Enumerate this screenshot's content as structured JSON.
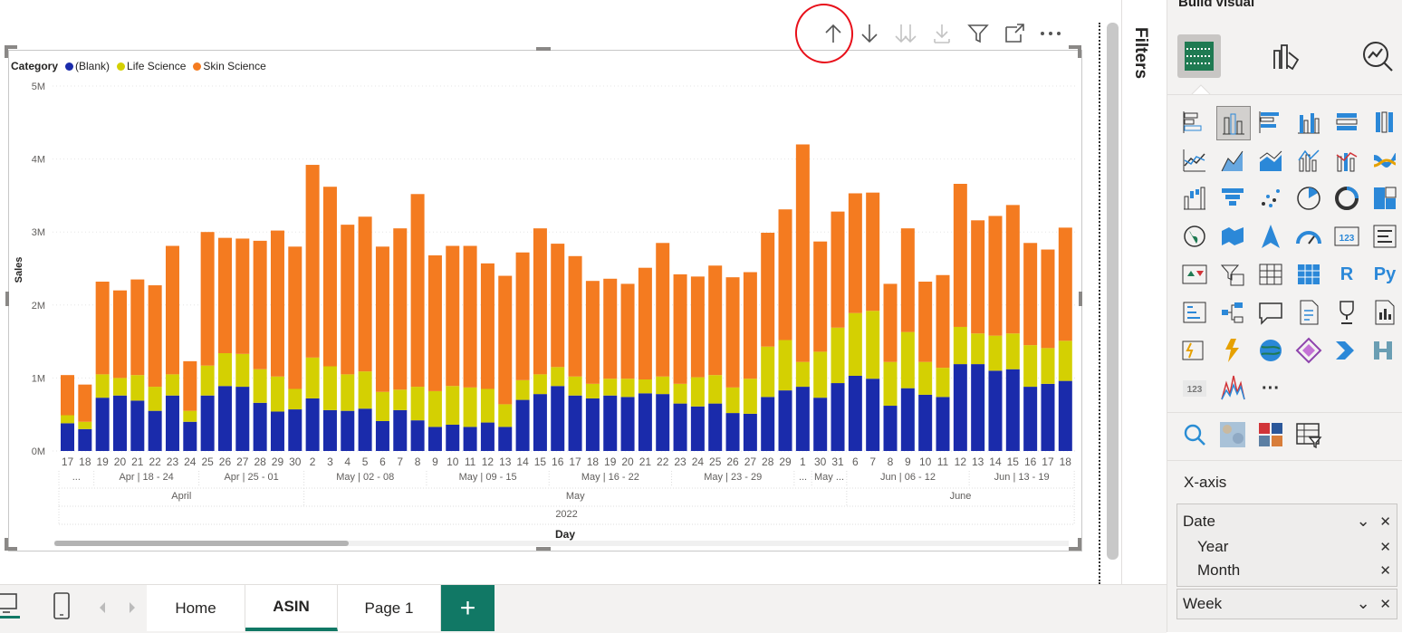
{
  "toolbar": {
    "icons": [
      "arrow-up-icon",
      "arrow-down-icon",
      "double-arrow-down-icon",
      "expand-hierarchy-icon",
      "filter-icon",
      "focus-mode-icon",
      "more-options-icon"
    ]
  },
  "legend": {
    "title": "Category",
    "items": [
      {
        "label": "(Blank)",
        "color": "#1a2bab"
      },
      {
        "label": "Life Science",
        "color": "#d4d002"
      },
      {
        "label": "Skin Science",
        "color": "#f47b20"
      }
    ]
  },
  "chart_data": {
    "type": "bar",
    "stacked": true,
    "ylabel": "Sales",
    "xlabel": "Day",
    "yticks": [
      "0M",
      "1M",
      "2M",
      "3M",
      "4M",
      "5M"
    ],
    "ylim": [
      0,
      5000000
    ],
    "grid": true,
    "legend_position": "top-left",
    "categories": [
      "17",
      "18",
      "19",
      "20",
      "21",
      "22",
      "23",
      "24",
      "25",
      "26",
      "27",
      "28",
      "29",
      "30",
      "2",
      "3",
      "4",
      "5",
      "6",
      "7",
      "8",
      "9",
      "10",
      "11",
      "12",
      "13",
      "14",
      "15",
      "16",
      "17",
      "18",
      "19",
      "20",
      "21",
      "22",
      "23",
      "24",
      "25",
      "26",
      "27",
      "28",
      "29",
      "1",
      "30",
      "31",
      "6",
      "7",
      "8",
      "9",
      "10",
      "11",
      "12",
      "13",
      "14",
      "15",
      "16",
      "17",
      "18"
    ],
    "series": [
      {
        "name": "(Blank)",
        "color": "#1a2bab",
        "values": [
          380000,
          300000,
          730000,
          760000,
          690000,
          550000,
          760000,
          400000,
          760000,
          890000,
          880000,
          660000,
          540000,
          570000,
          720000,
          560000,
          550000,
          580000,
          410000,
          560000,
          420000,
          330000,
          360000,
          330000,
          390000,
          330000,
          700000,
          780000,
          890000,
          760000,
          720000,
          760000,
          740000,
          790000,
          780000,
          650000,
          610000,
          650000,
          520000,
          510000,
          740000,
          830000,
          880000,
          730000,
          930000,
          1030000,
          990000,
          620000,
          860000,
          770000,
          740000,
          1190000,
          1190000,
          1100000,
          1120000,
          880000,
          920000,
          960000
        ]
      },
      {
        "name": "Life Science",
        "color": "#d4d002",
        "values": [
          110000,
          100000,
          320000,
          240000,
          350000,
          330000,
          290000,
          150000,
          410000,
          450000,
          450000,
          460000,
          480000,
          280000,
          560000,
          600000,
          500000,
          510000,
          400000,
          280000,
          460000,
          490000,
          530000,
          540000,
          460000,
          310000,
          270000,
          270000,
          260000,
          260000,
          200000,
          230000,
          250000,
          190000,
          240000,
          270000,
          400000,
          390000,
          350000,
          480000,
          690000,
          690000,
          340000,
          630000,
          760000,
          860000,
          930000,
          600000,
          770000,
          450000,
          400000,
          510000,
          420000,
          480000,
          490000,
          570000,
          490000,
          550000
        ]
      },
      {
        "name": "Skin Science",
        "color": "#f47b20",
        "values": [
          550000,
          510000,
          1270000,
          1200000,
          1310000,
          1390000,
          1760000,
          680000,
          1830000,
          1580000,
          1580000,
          1760000,
          2000000,
          1950000,
          2640000,
          2460000,
          2050000,
          2120000,
          1990000,
          2210000,
          2640000,
          1860000,
          1920000,
          1940000,
          1720000,
          1760000,
          1750000,
          2000000,
          1690000,
          1650000,
          1410000,
          1370000,
          1300000,
          1530000,
          1830000,
          1500000,
          1380000,
          1500000,
          1510000,
          1460000,
          1560000,
          1790000,
          2980000,
          1510000,
          1590000,
          1640000,
          1620000,
          1070000,
          1420000,
          1100000,
          1270000,
          1960000,
          1550000,
          1640000,
          1760000,
          1400000,
          1350000,
          1550000
        ]
      }
    ],
    "hierarchy": {
      "week_labels": [
        "...",
        "Apr | 18 - 24",
        "Apr | 25 - 01",
        "May | 02 - 08",
        "May | 09 - 15",
        "May | 16 - 22",
        "May | 23 - 29",
        "...",
        "May ...",
        "Jun | 06 - 12",
        "Jun | 13 - 19"
      ],
      "month_labels": [
        "April",
        "May",
        "June"
      ],
      "year_label": "2022"
    }
  },
  "filters_pane": {
    "label": "Filters"
  },
  "viz_pane": {
    "title": "Build visual",
    "top_icons": [
      "build-visual-icon",
      "format-visual-icon",
      "analytics-icon"
    ],
    "visual_icons": [
      "stacked-bar-icon",
      "stacked-column-icon",
      "clustered-bar-icon",
      "clustered-column-icon",
      "100-bar-icon",
      "100-column-icon",
      "line-chart-icon",
      "area-chart-icon",
      "stacked-area-icon",
      "line-column-icon",
      "line-clustered-column-icon",
      "ribbon-chart-icon",
      "waterfall-icon",
      "funnel-icon",
      "scatter-icon",
      "pie-icon",
      "donut-icon",
      "treemap-icon",
      "map-icon",
      "filled-map-icon",
      "azure-map-icon",
      "gauge-icon",
      "card-icon",
      "multirow-card-icon",
      "kpi-icon",
      "slicer-icon",
      "table-icon",
      "matrix-icon",
      "r-visual-icon",
      "python-visual-icon",
      "key-influencers-icon",
      "decomposition-tree-icon",
      "qa-icon",
      "paginated-report-icon",
      "goals-icon",
      "report-builder-icon",
      "power-apps-icon",
      "power-automate-icon",
      "arcgis-icon",
      "diamond-icon",
      "power-automate-arrow-icon",
      "connector-icon",
      "number-card-icon",
      "sparkline-icon",
      "more-visuals-icon"
    ],
    "r_label": "R",
    "py_label": "Py",
    "card_label": "123",
    "more_label": "···",
    "bottom_icons": [
      "search-icon",
      "map-texture-icon",
      "apps-icon",
      "table-filter-icon"
    ],
    "section_label": "X-axis",
    "well1": {
      "field": "Date",
      "subfields": [
        "Year",
        "Month"
      ]
    },
    "well2": {
      "field": "Week"
    },
    "close_glyph": "✕",
    "chevron_glyph": "⌄"
  },
  "tabs": [
    {
      "label": "Home"
    },
    {
      "label": "ASIN"
    },
    {
      "label": "Page 1"
    }
  ],
  "add_tab_label": "+"
}
